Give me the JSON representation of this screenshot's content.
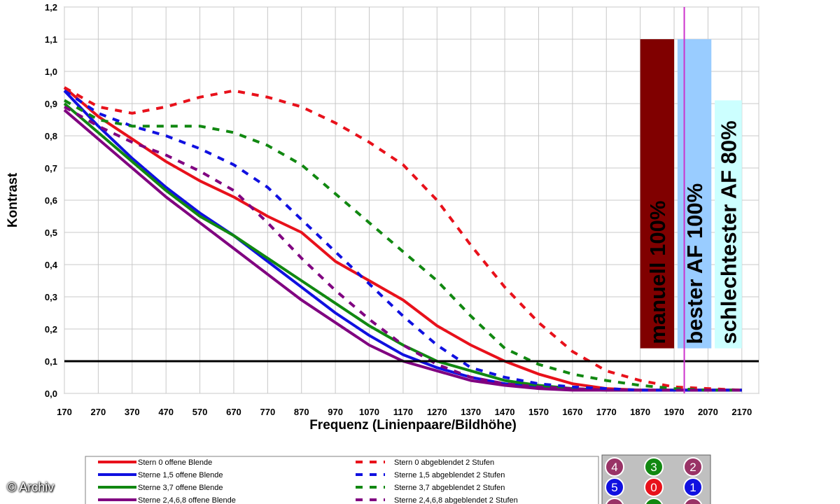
{
  "chart_data": {
    "type": "line",
    "xlabel": "Frequenz (Linienpaare/Bildhöhe)",
    "ylabel": "Kontrast",
    "xlim": [
      170,
      2220
    ],
    "ylim": [
      0,
      1.2
    ],
    "x_ticks": [
      "170",
      "270",
      "370",
      "470",
      "570",
      "670",
      "770",
      "870",
      "970",
      "1070",
      "1170",
      "1270",
      "1370",
      "1470",
      "1570",
      "1670",
      "1770",
      "1870",
      "1970",
      "2070",
      "2170"
    ],
    "y_ticks": [
      "0,0",
      "0,1",
      "0,2",
      "0,3",
      "0,4",
      "0,5",
      "0,6",
      "0,7",
      "0,8",
      "0,9",
      "1,0",
      "1,1",
      "1,2"
    ],
    "grid": true,
    "reference_line": {
      "y": 0.1,
      "color": "#000000"
    },
    "marker_line": {
      "x": 2000,
      "color": "#cc33cc"
    },
    "series": [
      {
        "name": "Stern 0 offene Blende",
        "color": "#e8111b",
        "style": "solid",
        "x": [
          170,
          270,
          370,
          470,
          570,
          670,
          770,
          870,
          970,
          1070,
          1170,
          1270,
          1370,
          1470,
          1570,
          1670,
          1770,
          1870,
          1970,
          2070,
          2170
        ],
        "y": [
          0.95,
          0.86,
          0.79,
          0.72,
          0.66,
          0.61,
          0.55,
          0.5,
          0.41,
          0.35,
          0.29,
          0.21,
          0.15,
          0.1,
          0.06,
          0.03,
          0.015,
          0.01,
          0.01,
          0.01,
          0.01
        ]
      },
      {
        "name": "Sterne 1,5 offene Blende",
        "color": "#1010e0",
        "style": "solid",
        "x": [
          170,
          270,
          370,
          470,
          570,
          670,
          770,
          870,
          970,
          1070,
          1170,
          1270,
          1370,
          1470,
          1570,
          1670,
          1770,
          1870,
          1970,
          2070,
          2170
        ],
        "y": [
          0.94,
          0.83,
          0.73,
          0.64,
          0.56,
          0.49,
          0.41,
          0.33,
          0.25,
          0.18,
          0.12,
          0.08,
          0.05,
          0.03,
          0.02,
          0.015,
          0.01,
          0.01,
          0.01,
          0.01,
          0.01
        ]
      },
      {
        "name": "Sterne 3,7 offene Blende",
        "color": "#118811",
        "style": "solid",
        "x": [
          170,
          270,
          370,
          470,
          570,
          670,
          770,
          870,
          970,
          1070,
          1170,
          1270,
          1370,
          1470,
          1570,
          1670,
          1770,
          1870,
          1970,
          2070,
          2170
        ],
        "y": [
          0.9,
          0.81,
          0.72,
          0.63,
          0.55,
          0.49,
          0.42,
          0.35,
          0.28,
          0.21,
          0.15,
          0.1,
          0.07,
          0.04,
          0.025,
          0.015,
          0.01,
          0.01,
          0.01,
          0.01,
          0.01
        ]
      },
      {
        "name": "Sterne 2,4,6,8 offene Blende",
        "color": "#800080",
        "style": "solid",
        "x": [
          170,
          270,
          370,
          470,
          570,
          670,
          770,
          870,
          970,
          1070,
          1170,
          1270,
          1370,
          1470,
          1570,
          1670,
          1770,
          1870,
          1970,
          2070,
          2170
        ],
        "y": [
          0.88,
          0.79,
          0.7,
          0.61,
          0.53,
          0.45,
          0.37,
          0.29,
          0.22,
          0.15,
          0.1,
          0.07,
          0.04,
          0.025,
          0.015,
          0.01,
          0.01,
          0.01,
          0.01,
          0.01,
          0.01
        ]
      },
      {
        "name": "Stern 0 abgeblendet 2 Stufen",
        "color": "#e8111b",
        "style": "dashed",
        "x": [
          170,
          270,
          370,
          470,
          570,
          670,
          770,
          870,
          970,
          1070,
          1170,
          1270,
          1370,
          1470,
          1570,
          1670,
          1770,
          1870,
          1970,
          2070,
          2170
        ],
        "y": [
          0.95,
          0.89,
          0.87,
          0.89,
          0.92,
          0.94,
          0.92,
          0.89,
          0.84,
          0.78,
          0.71,
          0.6,
          0.46,
          0.33,
          0.22,
          0.13,
          0.07,
          0.04,
          0.02,
          0.015,
          0.01
        ]
      },
      {
        "name": "Sterne 1,5 abgeblendet 2 Stufen",
        "color": "#1010e0",
        "style": "dashed",
        "x": [
          170,
          270,
          370,
          470,
          570,
          670,
          770,
          870,
          970,
          1070,
          1170,
          1270,
          1370,
          1470,
          1570,
          1670,
          1770,
          1870,
          1970,
          2070,
          2170
        ],
        "y": [
          0.94,
          0.87,
          0.83,
          0.8,
          0.76,
          0.71,
          0.64,
          0.54,
          0.44,
          0.34,
          0.24,
          0.15,
          0.08,
          0.05,
          0.03,
          0.02,
          0.015,
          0.01,
          0.01,
          0.01,
          0.01
        ]
      },
      {
        "name": "Sterne 3,7 abgeblendet 2 Stufen",
        "color": "#118811",
        "style": "dashed",
        "x": [
          170,
          270,
          370,
          470,
          570,
          670,
          770,
          870,
          970,
          1070,
          1170,
          1270,
          1370,
          1470,
          1570,
          1670,
          1770,
          1870,
          1970,
          2070,
          2170
        ],
        "y": [
          0.91,
          0.85,
          0.83,
          0.83,
          0.83,
          0.81,
          0.77,
          0.71,
          0.62,
          0.53,
          0.44,
          0.35,
          0.24,
          0.14,
          0.09,
          0.06,
          0.04,
          0.025,
          0.015,
          0.01,
          0.01
        ]
      },
      {
        "name": "Sterne 2,4,6,8 abgeblendet 2 Stufen",
        "color": "#800080",
        "style": "dashed",
        "x": [
          170,
          270,
          370,
          470,
          570,
          670,
          770,
          870,
          970,
          1070,
          1170,
          1270,
          1370,
          1470,
          1570,
          1670,
          1770,
          1870,
          1970,
          2070,
          2170
        ],
        "y": [
          0.89,
          0.83,
          0.78,
          0.74,
          0.69,
          0.63,
          0.53,
          0.42,
          0.32,
          0.23,
          0.15,
          0.09,
          0.05,
          0.03,
          0.02,
          0.015,
          0.01,
          0.01,
          0.01,
          0.01,
          0.01
        ]
      }
    ],
    "bars": [
      {
        "label": "manuell 100%",
        "color": "#800000",
        "value": 1.1,
        "x_from": 1870,
        "x_to": 1970
      },
      {
        "label": "bester AF 100%",
        "color": "#99ccff",
        "value": 1.1,
        "x_from": 1980,
        "x_to": 2080
      },
      {
        "label": "schlechtester AF 80%",
        "color": "#ccffff",
        "value": 0.91,
        "x_from": 2090,
        "x_to": 2170
      }
    ]
  },
  "legend": {
    "solid": [
      "Stern 0 offene Blende",
      "Sterne 1,5 offene Blende",
      "Sterne 3,7 offene Blende",
      "Sterne 2,4,6,8 offene Blende"
    ],
    "dashed": [
      "Stern 0 abgeblendet 2 Stufen",
      "Sterne 1,5 abgeblendet 2 Stufen",
      "Sterne 3,7 abgeblendet 2 Stufen",
      "Sterne 2,4,6,8 abgeblendet 2 Stufen"
    ]
  },
  "star_key": {
    "cells": [
      {
        "label": "4",
        "color": "#993366"
      },
      {
        "label": "3",
        "color": "#118811"
      },
      {
        "label": "2",
        "color": "#993366"
      },
      {
        "label": "5",
        "color": "#1010e0"
      },
      {
        "label": "0",
        "color": "#e8111b"
      },
      {
        "label": "1",
        "color": "#1010e0"
      },
      {
        "label": "",
        "color": "#993366"
      },
      {
        "label": "",
        "color": "#118811"
      },
      {
        "label": "",
        "color": "#993366"
      }
    ]
  },
  "copyright": "© Archiv"
}
